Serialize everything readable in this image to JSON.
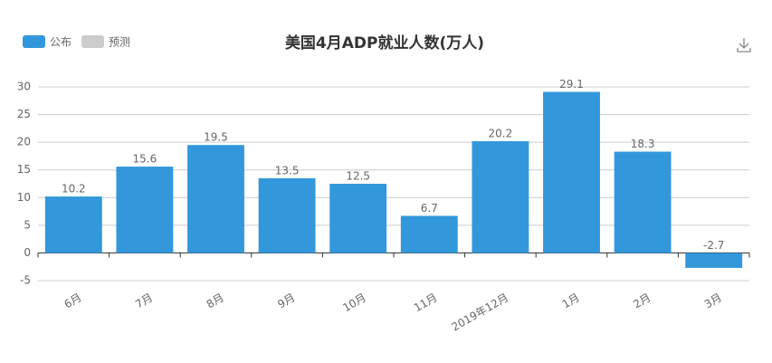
{
  "chart_data": {
    "type": "bar",
    "title": "美国4月ADP就业人数(万人)",
    "legend": [
      {
        "name": "公布",
        "color": "#3398db"
      },
      {
        "name": "预测",
        "color": "#cccccc"
      }
    ],
    "categories": [
      "6月",
      "7月",
      "8月",
      "9月",
      "10月",
      "11月",
      "2019年12月",
      "1月",
      "2月",
      "3月"
    ],
    "values": [
      10.2,
      15.6,
      19.5,
      13.5,
      12.5,
      6.7,
      20.2,
      29.1,
      18.3,
      -2.7
    ],
    "color": "#3398db",
    "ylim": [
      -5,
      30
    ],
    "yticks": [
      -5,
      0,
      5,
      10,
      15,
      20,
      25,
      30
    ],
    "grid": true
  }
}
